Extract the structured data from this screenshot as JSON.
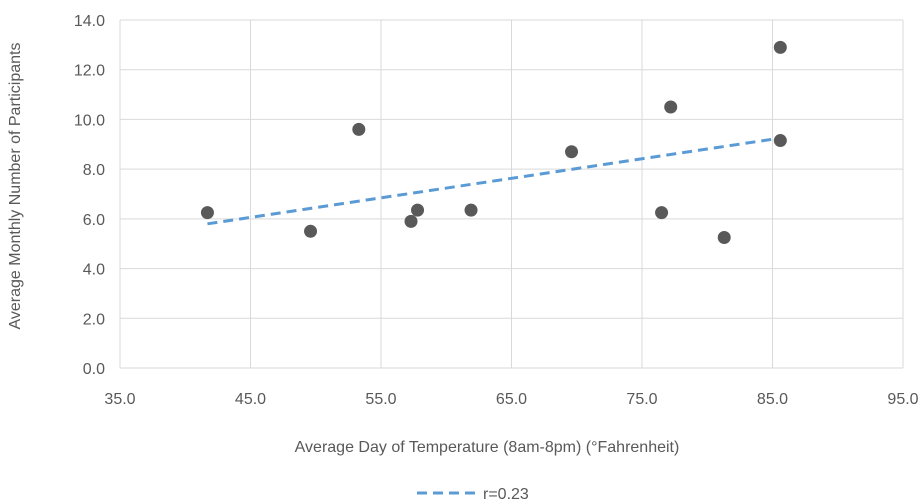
{
  "chart_data": {
    "type": "scatter",
    "title": "",
    "xlabel": "Average Day of Temperature (8am-8pm) (°Fahrenheit)",
    "ylabel": "Average Monthly Number of Participants",
    "xlim": [
      35,
      95
    ],
    "ylim": [
      0,
      14
    ],
    "x_ticks": [
      35,
      45,
      55,
      65,
      75,
      85,
      95
    ],
    "y_ticks": [
      0,
      2,
      4,
      6,
      8,
      10,
      12,
      14
    ],
    "x_tick_labels": [
      "35.0",
      "45.0",
      "55.0",
      "65.0",
      "75.0",
      "85.0",
      "95.0"
    ],
    "y_tick_labels": [
      "0.0",
      "2.0",
      "4.0",
      "6.0",
      "8.0",
      "10.0",
      "12.0",
      "14.0"
    ],
    "grid": true,
    "points": [
      {
        "x": 41.7,
        "y": 6.25
      },
      {
        "x": 49.6,
        "y": 5.5
      },
      {
        "x": 53.3,
        "y": 9.6
      },
      {
        "x": 57.3,
        "y": 5.9
      },
      {
        "x": 57.8,
        "y": 6.35
      },
      {
        "x": 61.9,
        "y": 6.35
      },
      {
        "x": 69.6,
        "y": 8.7
      },
      {
        "x": 76.5,
        "y": 6.25
      },
      {
        "x": 77.2,
        "y": 10.5
      },
      {
        "x": 81.3,
        "y": 5.25
      },
      {
        "x": 85.6,
        "y": 12.9
      },
      {
        "x": 85.6,
        "y": 9.15
      }
    ],
    "trendline": {
      "name": "r=0.23",
      "x": [
        41.7,
        85.6
      ],
      "y": [
        5.8,
        9.25
      ],
      "style": "dashed"
    },
    "legend_position": "bottom",
    "colors": {
      "points": "#595959",
      "trendline": "#5b9bd5",
      "grid": "#d9d9d9",
      "text": "#595959"
    }
  }
}
